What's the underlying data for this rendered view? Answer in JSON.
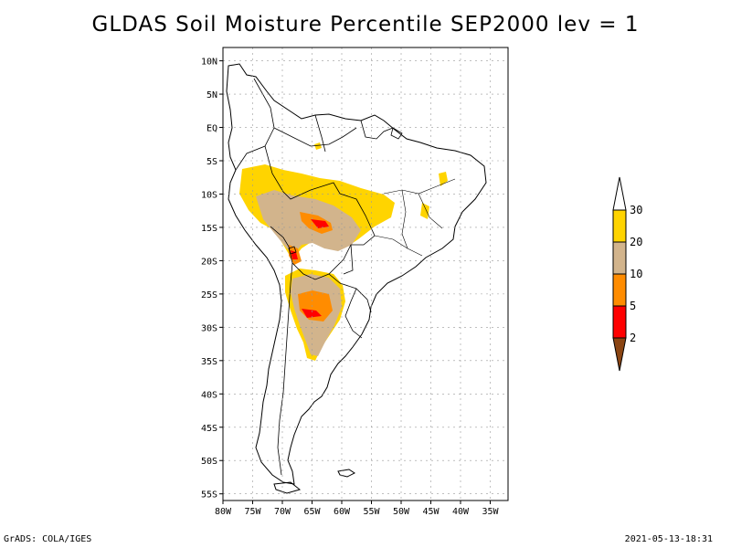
{
  "title": "GLDAS Soil Moisture Percentile SEP2000 lev = 1",
  "footer": {
    "left": "GrADS: COLA/IGES",
    "right": "2021-05-13-18:31"
  },
  "map": {
    "lon_range": [
      -80,
      -32
    ],
    "lat_range": [
      -56,
      12
    ],
    "lon_ticks": [
      {
        "lon": -80,
        "label": "80W"
      },
      {
        "lon": -75,
        "label": "75W"
      },
      {
        "lon": -70,
        "label": "70W"
      },
      {
        "lon": -65,
        "label": "65W"
      },
      {
        "lon": -60,
        "label": "60W"
      },
      {
        "lon": -55,
        "label": "55W"
      },
      {
        "lon": -50,
        "label": "50W"
      },
      {
        "lon": -45,
        "label": "45W"
      },
      {
        "lon": -40,
        "label": "40W"
      },
      {
        "lon": -35,
        "label": "35W"
      }
    ],
    "lat_ticks": [
      {
        "lat": 10,
        "label": "10N"
      },
      {
        "lat": 5,
        "label": "5N"
      },
      {
        "lat": 0,
        "label": "EQ"
      },
      {
        "lat": -5,
        "label": "5S"
      },
      {
        "lat": -10,
        "label": "10S"
      },
      {
        "lat": -15,
        "label": "15S"
      },
      {
        "lat": -20,
        "label": "20S"
      },
      {
        "lat": -25,
        "label": "25S"
      },
      {
        "lat": -30,
        "label": "30S"
      },
      {
        "lat": -35,
        "label": "35S"
      },
      {
        "lat": -40,
        "label": "40S"
      },
      {
        "lat": -45,
        "label": "45S"
      },
      {
        "lat": -50,
        "label": "50S"
      },
      {
        "lat": -55,
        "label": "55S"
      }
    ],
    "colors": {
      "c30": "#ffd400",
      "c20": "#d2b48c",
      "c10": "#ff8c00",
      "c5": "#ff0000",
      "c2": "#8b4513"
    }
  },
  "legend": {
    "labels": [
      "30",
      "20",
      "10",
      "5",
      "2"
    ],
    "colors": [
      "#ffd400",
      "#d2b48c",
      "#ff8c00",
      "#ff0000",
      "#8b4513"
    ],
    "top_arrow_color": "#ffffff"
  }
}
